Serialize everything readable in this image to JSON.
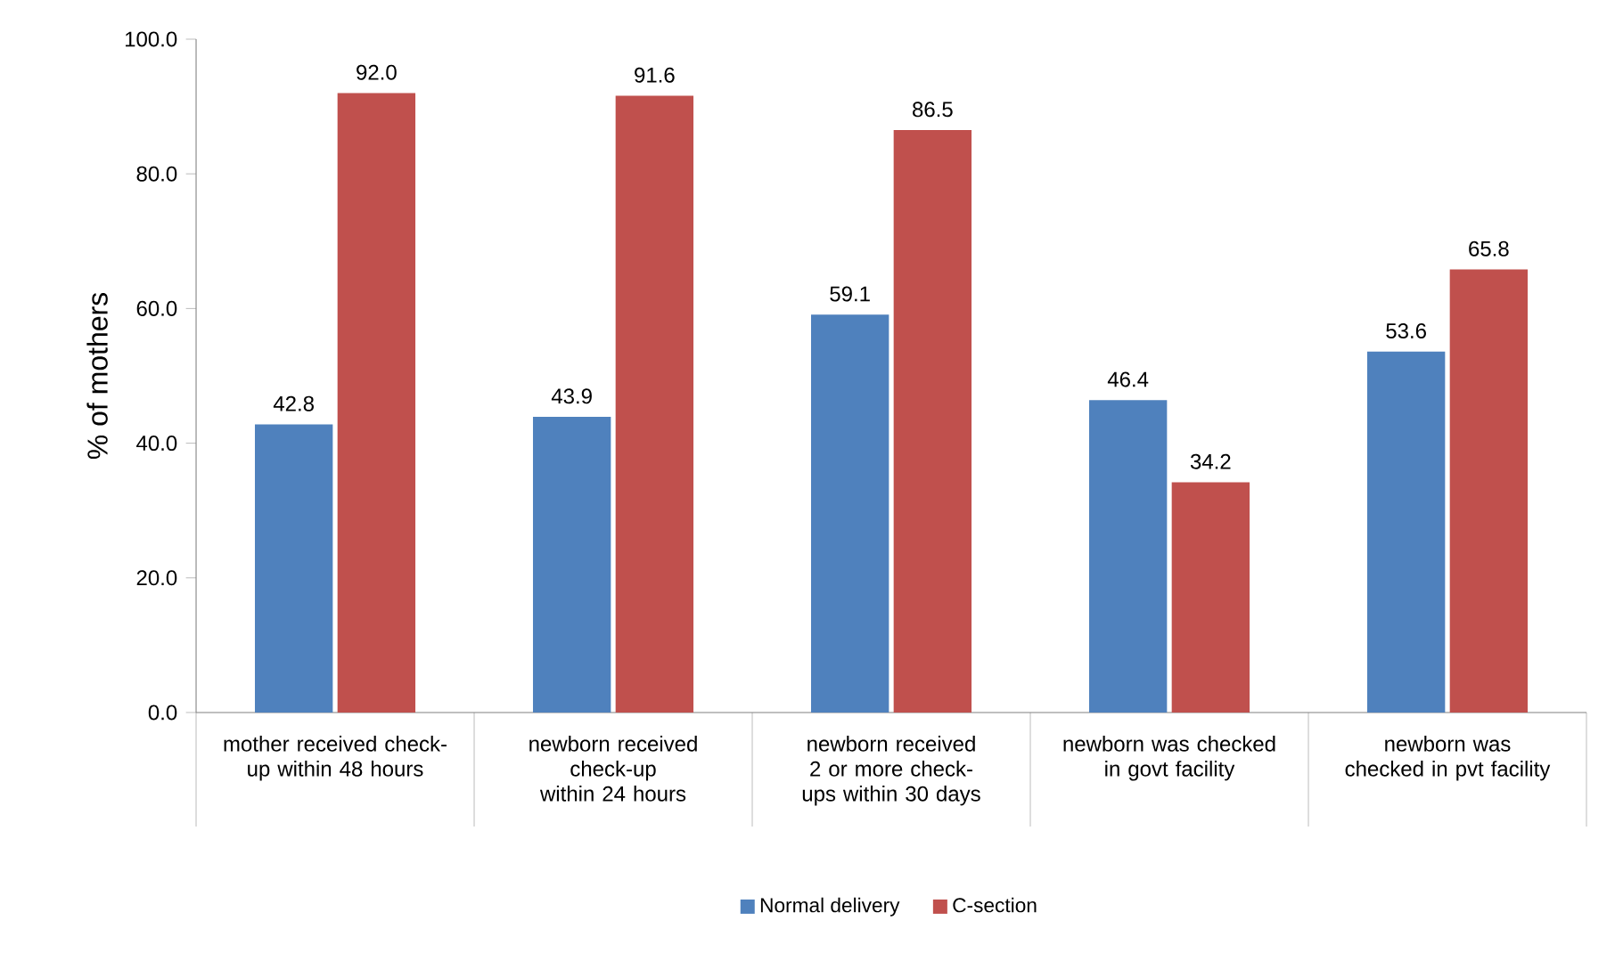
{
  "chart_data": {
    "type": "bar",
    "ylabel": "% of mothers",
    "categories": [
      "mother received check-up within 48 hours",
      "newborn received check-up within 24 hours",
      "newborn received 2 or more check-ups within 30 days",
      "newborn was checked in govt facility",
      "newborn was checked in pvt facility"
    ],
    "series": [
      {
        "name": "Normal delivery",
        "color": "#4f81bd",
        "values": [
          42.8,
          43.9,
          59.1,
          46.4,
          53.6
        ],
        "value_labels": [
          "42.8",
          "43.9",
          "59.1",
          "46.4",
          "53.6"
        ]
      },
      {
        "name": "C-section",
        "color": "#c0504d",
        "values": [
          92.0,
          91.6,
          86.5,
          34.2,
          65.8
        ],
        "value_labels": [
          "92.0",
          "91.6",
          "86.5",
          "34.2",
          "65.8"
        ]
      }
    ],
    "ylim": [
      0,
      100
    ],
    "yticks": [
      {
        "value": 0,
        "label": "0.0"
      },
      {
        "value": 20,
        "label": "20.0"
      },
      {
        "value": 40,
        "label": "40.0"
      },
      {
        "value": 60,
        "label": "60.0"
      },
      {
        "value": 80,
        "label": "80.0"
      },
      {
        "value": 100,
        "label": "100.0"
      }
    ],
    "grid": false,
    "legend": "bottom"
  }
}
